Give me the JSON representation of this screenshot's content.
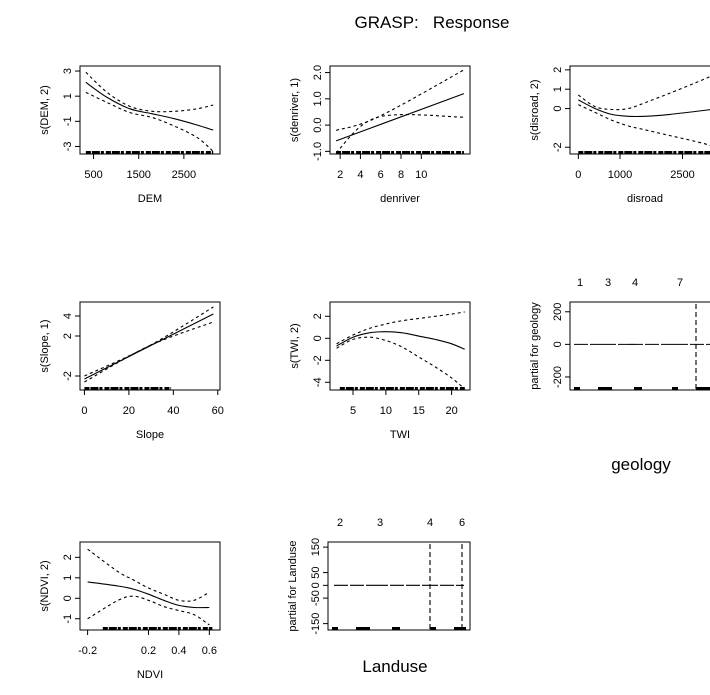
{
  "title": "GRASP:   Response",
  "chart_data": [
    {
      "type": "line",
      "id": "dem",
      "xlabel": "DEM",
      "ylabel": "s(DEM, 2)",
      "xlim": [
        200,
        3300
      ],
      "ylim": [
        -3.6,
        3.4
      ],
      "xticks": [
        500,
        1500,
        2500
      ],
      "xticklabels": [
        "500",
        "1500",
        "2500"
      ],
      "yticks": [
        3,
        1,
        -1,
        -3
      ],
      "yticklabels": [
        "3",
        "1",
        "-1",
        "-3"
      ],
      "series": [
        {
          "role": "fit",
          "x": [
            330,
            800,
            1300,
            1800,
            2300,
            2800,
            3150
          ],
          "y": [
            2.1,
            0.9,
            0.0,
            -0.4,
            -0.8,
            -1.3,
            -1.7
          ]
        },
        {
          "role": "upper",
          "x": [
            330,
            800,
            1300,
            1800,
            2300,
            2800,
            3150
          ],
          "y": [
            2.9,
            1.3,
            0.2,
            -0.2,
            -0.2,
            0.0,
            0.3
          ]
        },
        {
          "role": "lower",
          "x": [
            330,
            800,
            1300,
            1800,
            2300,
            2800,
            3150
          ],
          "y": [
            1.3,
            0.5,
            -0.3,
            -0.7,
            -1.4,
            -2.3,
            -3.4
          ]
        }
      ],
      "rug": {
        "from": 330,
        "to": 3150
      }
    },
    {
      "type": "line",
      "id": "denriver",
      "xlabel": "denriver",
      "ylabel": "s(denriver, 1)",
      "xlim": [
        1.0,
        14.8
      ],
      "ylim": [
        -1.1,
        2.25
      ],
      "xticks": [
        2,
        4,
        6,
        8,
        10
      ],
      "xticklabels": [
        "2",
        "4",
        "6",
        "8",
        "10"
      ],
      "yticks": [
        2.0,
        1.0,
        0.0,
        -1.0
      ],
      "yticklabels": [
        "2.0",
        "1.0",
        "0.0",
        "-1.0"
      ],
      "series": [
        {
          "role": "fit",
          "x": [
            1.6,
            14.2
          ],
          "y": [
            -0.6,
            1.2
          ]
        },
        {
          "role": "upper",
          "x": [
            1.6,
            5.7,
            14.2
          ],
          "y": [
            -0.2,
            0.3,
            2.1
          ]
        },
        {
          "role": "lower",
          "x": [
            1.6,
            5.7,
            14.2
          ],
          "y": [
            -1.05,
            0.3,
            0.3
          ]
        }
      ],
      "rug": {
        "from": 1.6,
        "to": 14.2
      }
    },
    {
      "type": "line",
      "id": "disroad",
      "xlabel": "disroad",
      "ylabel": "s(disroad, 2)",
      "xlim": [
        -200,
        3400
      ],
      "ylim": [
        -2.35,
        2.2
      ],
      "xticks": [
        0,
        1000,
        2500
      ],
      "xticklabels": [
        "0",
        "1000",
        "2500"
      ],
      "yticks": [
        2,
        1,
        0,
        -2
      ],
      "yticklabels": [
        "2",
        "1",
        "0",
        "-2"
      ],
      "series": [
        {
          "role": "fit",
          "x": [
            0,
            400,
            800,
            1200,
            1600,
            2200,
            3000,
            3400
          ],
          "y": [
            0.45,
            0.0,
            -0.3,
            -0.4,
            -0.4,
            -0.3,
            -0.1,
            0.0
          ]
        },
        {
          "role": "upper",
          "x": [
            0,
            400,
            800,
            1200,
            1600,
            2200,
            3000,
            3400
          ],
          "y": [
            0.7,
            0.1,
            -0.05,
            0.0,
            0.3,
            0.8,
            1.5,
            1.9
          ]
        },
        {
          "role": "lower",
          "x": [
            0,
            400,
            800,
            1200,
            1600,
            2200,
            3000,
            3400
          ],
          "y": [
            0.2,
            -0.2,
            -0.6,
            -0.9,
            -1.1,
            -1.4,
            -1.8,
            -2.1
          ]
        }
      ],
      "rug": {
        "from": 0,
        "to": 3400
      }
    },
    {
      "type": "line",
      "id": "slope",
      "xlabel": "Slope",
      "ylabel": "s(Slope, 1)",
      "xlim": [
        -2,
        61
      ],
      "ylim": [
        -3.4,
        5.4
      ],
      "xticks": [
        0,
        20,
        40,
        60
      ],
      "xticklabels": [
        "0",
        "20",
        "40",
        "60"
      ],
      "yticks": [
        4,
        2,
        -2
      ],
      "yticklabels": [
        "4",
        "2",
        "-2"
      ],
      "series": [
        {
          "role": "fit",
          "x": [
            0,
            58
          ],
          "y": [
            -2.3,
            4.2
          ]
        },
        {
          "role": "upper",
          "x": [
            0,
            29,
            58
          ],
          "y": [
            -2.0,
            1.0,
            4.9
          ]
        },
        {
          "role": "lower",
          "x": [
            0,
            29,
            58
          ],
          "y": [
            -2.6,
            1.0,
            3.4
          ]
        }
      ],
      "rug": {
        "from": 0,
        "to": 39
      }
    },
    {
      "type": "line",
      "id": "twi",
      "xlabel": "TWI",
      "ylabel": "s(TWI, 2)",
      "xlim": [
        1.5,
        22.8
      ],
      "ylim": [
        -4.7,
        3.3
      ],
      "xticks": [
        5,
        10,
        15,
        20
      ],
      "xticklabels": [
        "5",
        "10",
        "15",
        "20"
      ],
      "yticks": [
        2,
        0,
        -2,
        -4
      ],
      "yticklabels": [
        "2",
        "0",
        "-2",
        "-4"
      ],
      "series": [
        {
          "role": "fit",
          "x": [
            2.5,
            5,
            7.5,
            10,
            12.5,
            15,
            17.5,
            20,
            22
          ],
          "y": [
            -0.7,
            0.1,
            0.5,
            0.6,
            0.5,
            0.2,
            -0.1,
            -0.5,
            -1.0
          ]
        },
        {
          "role": "upper",
          "x": [
            2.5,
            5,
            7.5,
            10,
            12.5,
            15,
            17.5,
            20,
            22
          ],
          "y": [
            -0.5,
            0.3,
            0.9,
            1.3,
            1.6,
            1.8,
            2.0,
            2.2,
            2.4
          ]
        },
        {
          "role": "lower",
          "x": [
            2.5,
            5,
            7.5,
            10,
            12.5,
            15,
            17.5,
            20,
            22
          ],
          "y": [
            -0.9,
            -0.1,
            0.1,
            -0.2,
            -0.8,
            -1.7,
            -2.6,
            -3.6,
            -4.6
          ]
        }
      ],
      "rug": {
        "from": 3,
        "to": 22
      }
    },
    {
      "type": "line",
      "id": "ndvi",
      "xlabel": "NDVI",
      "ylabel": "s(NDVI, 2)",
      "xlim": [
        -0.25,
        0.67
      ],
      "ylim": [
        -1.55,
        2.75
      ],
      "xticks": [
        -0.2,
        0.2,
        0.4,
        0.6
      ],
      "xticklabels": [
        "-0.2",
        "0.2",
        "0.4",
        "0.6"
      ],
      "yticks": [
        2,
        1,
        0,
        -1
      ],
      "yticklabels": [
        "2",
        "1",
        "0",
        "-1"
      ],
      "series": [
        {
          "role": "fit",
          "x": [
            -0.2,
            0.0,
            0.1,
            0.2,
            0.3,
            0.4,
            0.5,
            0.6
          ],
          "y": [
            0.8,
            0.6,
            0.45,
            0.2,
            -0.1,
            -0.35,
            -0.45,
            -0.45
          ]
        },
        {
          "role": "upper",
          "x": [
            -0.2,
            0.0,
            0.1,
            0.2,
            0.3,
            0.4,
            0.5,
            0.6
          ],
          "y": [
            2.4,
            1.3,
            0.9,
            0.5,
            0.2,
            -0.1,
            -0.1,
            0.3
          ]
        },
        {
          "role": "lower",
          "x": [
            -0.2,
            0.0,
            0.1,
            0.2,
            0.3,
            0.4,
            0.5,
            0.6
          ],
          "y": [
            -1.0,
            -0.1,
            0.1,
            -0.1,
            -0.4,
            -0.6,
            -0.8,
            -1.3
          ]
        }
      ],
      "rug": {
        "from": -0.1,
        "to": 0.62
      }
    },
    {
      "type": "step",
      "id": "geology",
      "xlabel": "geology",
      "ylabel": "partial for geology",
      "ylim": [
        -280,
        260
      ],
      "categories": [
        "1",
        "3",
        "4",
        "7"
      ],
      "yticks": [
        200,
        0,
        -200
      ],
      "yticklabels": [
        "200",
        "0",
        "-200"
      ],
      "values": [
        0,
        0,
        0,
        0
      ],
      "divider_level": 7
    },
    {
      "type": "step",
      "id": "landuse",
      "xlabel": "Landuse",
      "ylabel": "partial for Landuse",
      "ylim": [
        -175,
        170
      ],
      "categories": [
        "2",
        "3",
        "4",
        "6"
      ],
      "yticks": [
        150,
        50,
        0,
        -50,
        -150
      ],
      "yticklabels": [
        "150",
        "50",
        "0",
        "-50",
        "-150"
      ],
      "values": [
        0,
        0,
        0,
        0
      ]
    }
  ]
}
